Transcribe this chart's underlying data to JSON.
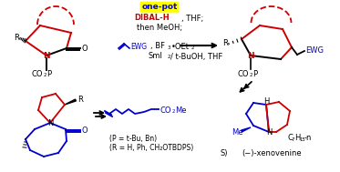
{
  "background_color": "#ffffff",
  "figsize": [
    3.73,
    1.89
  ],
  "dpi": 100,
  "one_pot_text": "one-pot",
  "one_pot_bg": "#ffff00",
  "one_pot_color": "#0000ee",
  "red_color": "#cc0000",
  "blue_color": "#0000cc",
  "black_color": "#000000",
  "note_line1": "(P = t-Bu, Bn)",
  "note_line2": "(R = H, Ph, CH₂OTBDPS)",
  "xenovenine": "(−)-xenovenine"
}
